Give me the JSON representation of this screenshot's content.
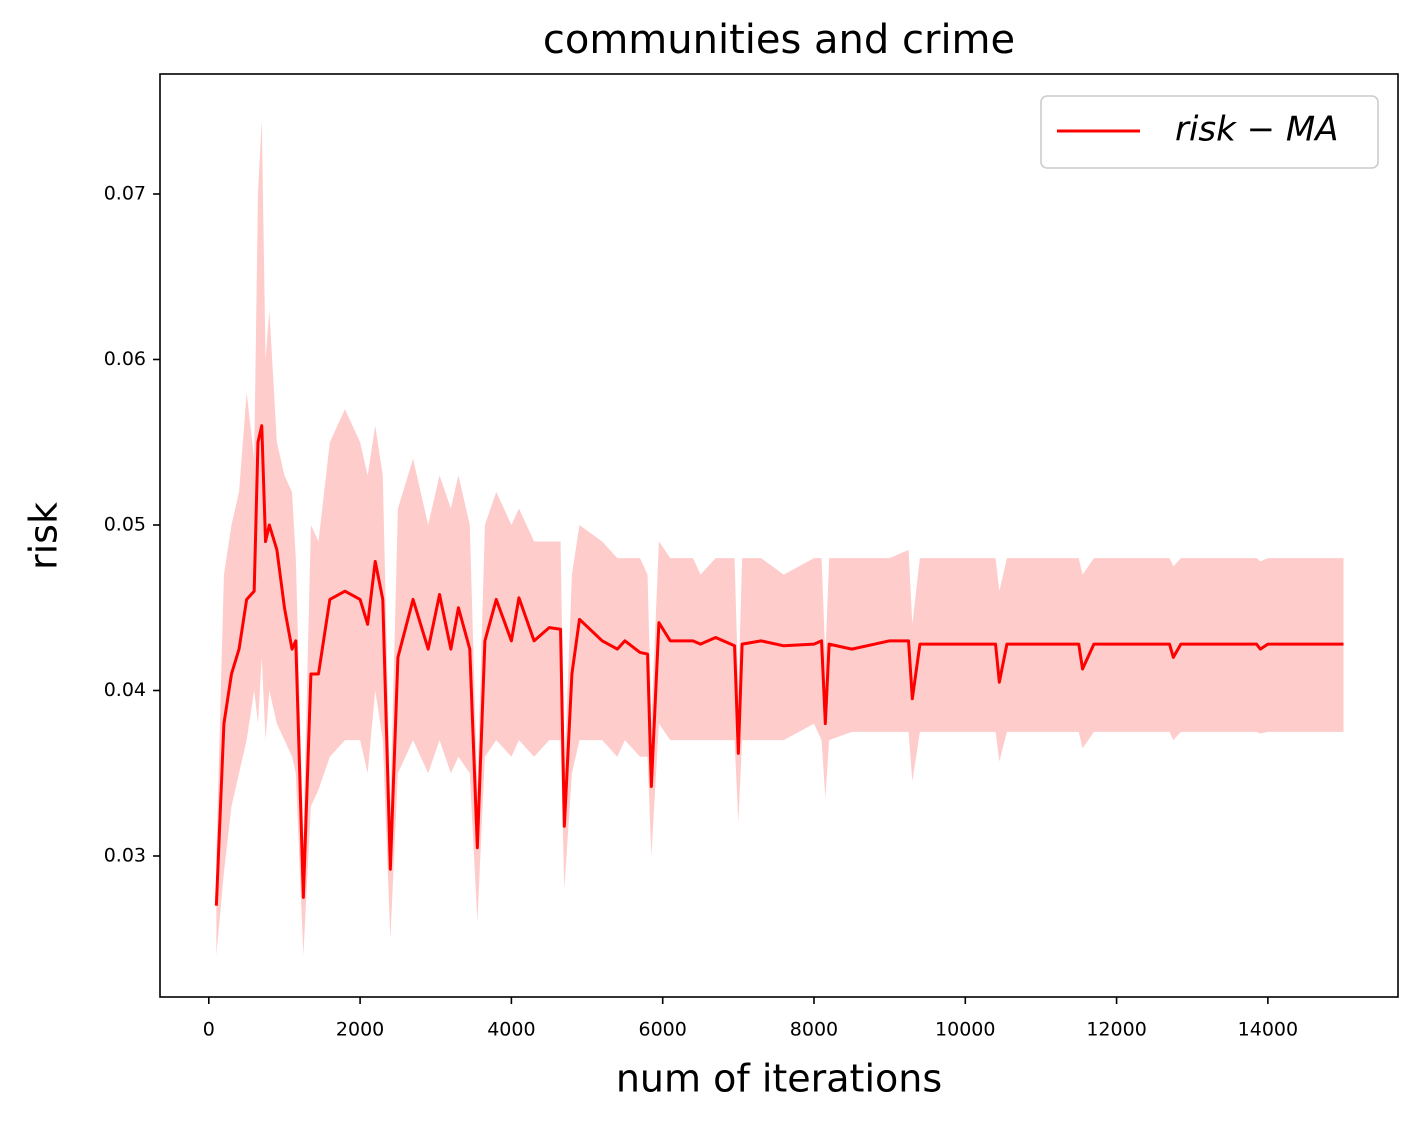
{
  "chart_data": {
    "type": "line",
    "title": "communities and crime",
    "x_label": "num of iterations",
    "y_label": "risk",
    "xlim": [
      -645,
      15720
    ],
    "ylim": [
      0.02148,
      0.07725
    ],
    "xticks": [
      0,
      2000,
      4000,
      6000,
      8000,
      10000,
      12000,
      14000
    ],
    "yticks": [
      0.03,
      0.04,
      0.05,
      0.06,
      0.07
    ],
    "legend_position": "upper right",
    "x": [
      100,
      200,
      300,
      400,
      500,
      600,
      650,
      700,
      750,
      800,
      900,
      1000,
      1100,
      1150,
      1250,
      1350,
      1450,
      1600,
      1800,
      2000,
      2100,
      2200,
      2300,
      2400,
      2500,
      2700,
      2900,
      3050,
      3200,
      3300,
      3450,
      3550,
      3650,
      3800,
      4000,
      4100,
      4300,
      4500,
      4650,
      4700,
      4800,
      4900,
      5200,
      5400,
      5500,
      5700,
      5800,
      5850,
      5950,
      6100,
      6400,
      6500,
      6700,
      6950,
      7000,
      7050,
      7300,
      7600,
      8000,
      8100,
      8150,
      8200,
      8500,
      9000,
      9250,
      9300,
      9400,
      10000,
      10400,
      10450,
      10550,
      11500,
      11550,
      11700,
      12700,
      12750,
      12850,
      13850,
      13900,
      14000,
      15000
    ],
    "series": [
      {
        "name": "risk − MA",
        "color": "#ff0000",
        "values": [
          0.027,
          0.038,
          0.041,
          0.0425,
          0.0455,
          0.046,
          0.055,
          0.056,
          0.049,
          0.05,
          0.0485,
          0.045,
          0.0425,
          0.043,
          0.0275,
          0.041,
          0.041,
          0.0455,
          0.046,
          0.0455,
          0.044,
          0.0478,
          0.0455,
          0.0292,
          0.042,
          0.0455,
          0.0425,
          0.0458,
          0.0425,
          0.045,
          0.0425,
          0.0305,
          0.043,
          0.0455,
          0.043,
          0.0456,
          0.043,
          0.0438,
          0.0437,
          0.0318,
          0.041,
          0.0443,
          0.043,
          0.0425,
          0.043,
          0.0423,
          0.0422,
          0.0342,
          0.0441,
          0.043,
          0.043,
          0.0428,
          0.0432,
          0.0427,
          0.0362,
          0.0428,
          0.043,
          0.0427,
          0.0428,
          0.043,
          0.038,
          0.0428,
          0.0425,
          0.043,
          0.043,
          0.0395,
          0.0428,
          0.0428,
          0.0428,
          0.0405,
          0.0428,
          0.0428,
          0.0413,
          0.0428,
          0.0428,
          0.042,
          0.0428,
          0.0428,
          0.0425,
          0.0428,
          0.0428
        ]
      }
    ],
    "band": {
      "color": "#ffcccc",
      "lower": [
        0.024,
        0.029,
        0.033,
        0.035,
        0.037,
        0.04,
        0.038,
        0.042,
        0.037,
        0.04,
        0.038,
        0.037,
        0.036,
        0.035,
        0.024,
        0.033,
        0.034,
        0.036,
        0.037,
        0.037,
        0.035,
        0.04,
        0.037,
        0.025,
        0.035,
        0.037,
        0.035,
        0.037,
        0.035,
        0.036,
        0.035,
        0.026,
        0.036,
        0.037,
        0.036,
        0.037,
        0.036,
        0.037,
        0.037,
        0.028,
        0.035,
        0.037,
        0.037,
        0.036,
        0.037,
        0.036,
        0.036,
        0.03,
        0.038,
        0.037,
        0.037,
        0.037,
        0.037,
        0.037,
        0.032,
        0.037,
        0.037,
        0.037,
        0.038,
        0.037,
        0.0335,
        0.037,
        0.0375,
        0.0375,
        0.0375,
        0.0345,
        0.0375,
        0.0375,
        0.0375,
        0.0357,
        0.0375,
        0.0375,
        0.0365,
        0.0375,
        0.0375,
        0.037,
        0.0375,
        0.0375,
        0.0374,
        0.0375,
        0.0375
      ],
      "upper": [
        0.03,
        0.047,
        0.05,
        0.052,
        0.058,
        0.054,
        0.07,
        0.0745,
        0.06,
        0.063,
        0.055,
        0.053,
        0.052,
        0.048,
        0.031,
        0.05,
        0.049,
        0.055,
        0.057,
        0.055,
        0.053,
        0.056,
        0.053,
        0.033,
        0.051,
        0.054,
        0.05,
        0.053,
        0.051,
        0.053,
        0.05,
        0.034,
        0.05,
        0.052,
        0.05,
        0.051,
        0.049,
        0.049,
        0.049,
        0.035,
        0.047,
        0.05,
        0.049,
        0.048,
        0.048,
        0.048,
        0.047,
        0.038,
        0.049,
        0.048,
        0.048,
        0.047,
        0.048,
        0.048,
        0.04,
        0.048,
        0.048,
        0.047,
        0.048,
        0.048,
        0.042,
        0.048,
        0.048,
        0.048,
        0.0485,
        0.044,
        0.048,
        0.048,
        0.048,
        0.046,
        0.048,
        0.048,
        0.047,
        0.048,
        0.048,
        0.0475,
        0.048,
        0.048,
        0.0478,
        0.048,
        0.048
      ]
    }
  }
}
